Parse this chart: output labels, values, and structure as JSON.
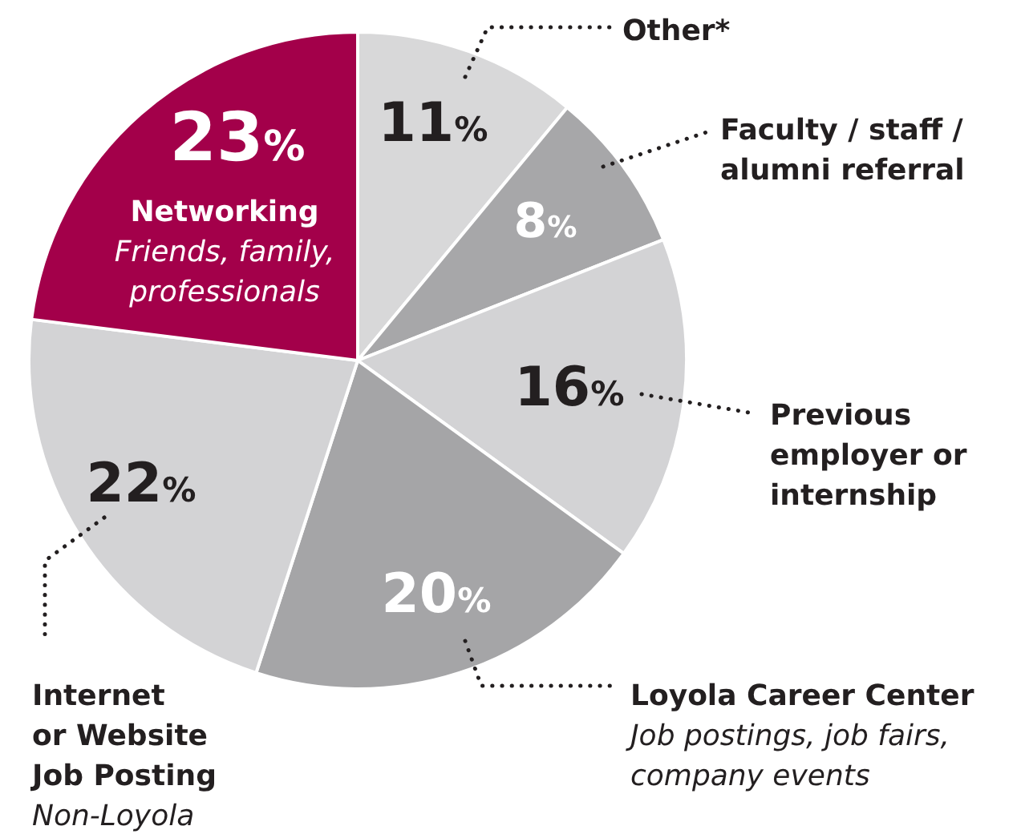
{
  "chart_data": {
    "type": "pie",
    "categories": [
      "Other*",
      "Faculty / staff / alumni referral",
      "Previous employer or internship",
      "Loyola Career Center",
      "Internet or Website Job Posting",
      "Networking"
    ],
    "values": [
      11,
      8,
      16,
      20,
      22,
      23
    ],
    "colors": [
      "#d8d8d9",
      "#a7a7a9",
      "#d3d3d5",
      "#a5a5a7",
      "#d3d3d5",
      "#a3004a"
    ],
    "value_labels": [
      "11%",
      "8%",
      "16%",
      "20%",
      "22%",
      "23%"
    ],
    "annotations": [
      "Job postings, job fairs, company events",
      "Non-Loyola",
      "Friends, family, professionals"
    ]
  }
}
